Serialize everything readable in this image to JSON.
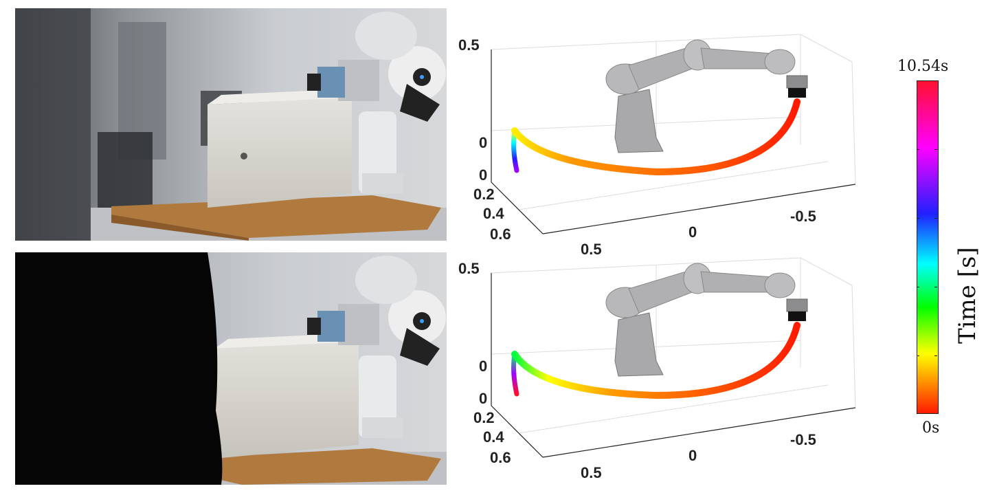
{
  "figure": {
    "panels": [
      {
        "id": "top",
        "photo": "robot arm beside box on wooden pallet, no occlusion",
        "axes": {
          "z_ticks": [
            "0.5",
            "0"
          ],
          "y_ticks": [
            "0",
            "0.2",
            "0.4",
            "0.6"
          ],
          "x_ticks": [
            "0.5",
            "0",
            "-0.5"
          ]
        }
      },
      {
        "id": "bottom",
        "photo": "robot arm beside box on wooden pallet, person occluding left side",
        "axes": {
          "z_ticks": [
            "0.5",
            "0"
          ],
          "y_ticks": [
            "0",
            "0.2",
            "0.4",
            "0.6"
          ],
          "x_ticks": [
            "0.5",
            "0",
            "-0.5"
          ]
        }
      }
    ],
    "colorbar": {
      "max_label": "10.54s",
      "min_label": "0s",
      "title": "Time [s]",
      "colors": [
        "#ff1030",
        "#ff00ff",
        "#2020ff",
        "#00ffff",
        "#00ff00",
        "#ffff00",
        "#ff1a00"
      ]
    }
  }
}
